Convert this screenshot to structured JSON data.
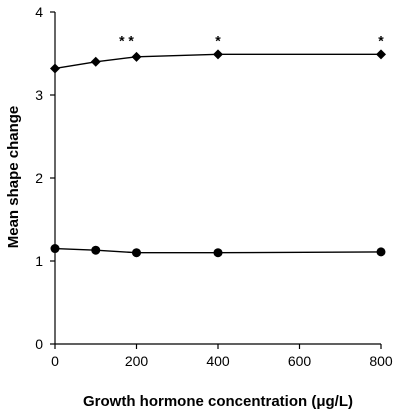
{
  "chart_data": {
    "type": "line",
    "xlabel": "Growth hormone concentration (μg/L)",
    "ylabel": "Mean shape change",
    "xlim": [
      0,
      800
    ],
    "ylim": [
      0,
      4
    ],
    "x_ticks": [
      0,
      200,
      400,
      600,
      800
    ],
    "y_ticks": [
      0,
      1,
      2,
      3,
      4
    ],
    "grid": false,
    "legend": "none",
    "series": [
      {
        "marker": "diamond",
        "x": [
          0,
          100,
          200,
          400,
          800
        ],
        "y": [
          3.32,
          3.4,
          3.46,
          3.49,
          3.49
        ]
      },
      {
        "marker": "circle",
        "x": [
          0,
          100,
          200,
          400,
          800
        ],
        "y": [
          1.15,
          1.13,
          1.1,
          1.1,
          1.11
        ]
      }
    ],
    "annotations": [
      {
        "text": "* *",
        "x": 200,
        "y": 3.69
      },
      {
        "text": "*",
        "x": 400,
        "y": 3.69
      },
      {
        "text": "*",
        "x": 800,
        "y": 3.69
      }
    ]
  }
}
